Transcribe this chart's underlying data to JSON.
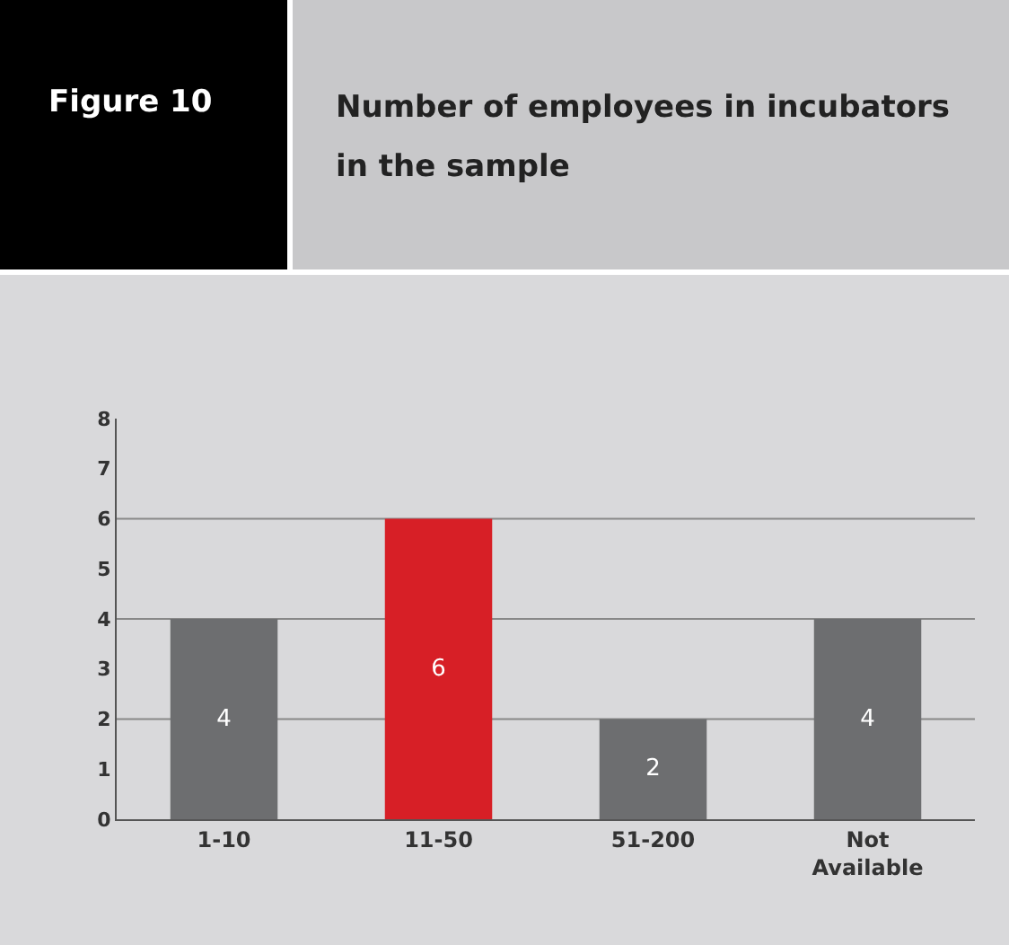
{
  "chart_data": {
    "type": "bar",
    "title": "Number of employees in incubators in the sample",
    "annotations": [
      "Figure 10"
    ],
    "categories": [
      "1-10",
      "11-50",
      "51-200",
      "Not Available"
    ],
    "values": [
      4,
      6,
      2,
      4
    ],
    "colors": [
      "#6d6e70",
      "#d71f26",
      "#6d6e70",
      "#6d6e70"
    ],
    "ylim": [
      0,
      8
    ],
    "yticks": [
      0,
      1,
      2,
      3,
      4,
      5,
      6,
      7,
      8
    ],
    "grid": "y",
    "data_labels": true
  }
}
